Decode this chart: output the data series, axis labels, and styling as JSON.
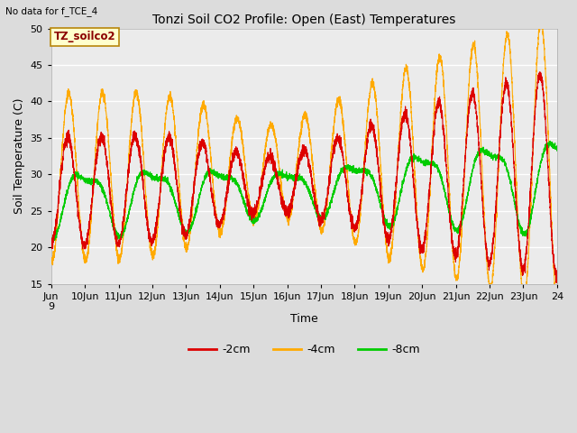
{
  "title": "Tonzi Soil CO2 Profile: Open (East) Temperatures",
  "xlabel": "Time",
  "ylabel": "Soil Temperature (C)",
  "ylim": [
    15,
    50
  ],
  "xlim": [
    0,
    15
  ],
  "no_data_text": "No data for f_TCE_4",
  "box_label": "TZ_soilco2",
  "legend_labels": [
    "-2cm",
    "-4cm",
    "-8cm"
  ],
  "line_colors": [
    "#dd0000",
    "#ffaa00",
    "#00cc00"
  ],
  "bg_color": "#dcdcdc",
  "plot_bg_color": "#ebebeb",
  "grid_color": "#ffffff",
  "yticks": [
    15,
    20,
    25,
    30,
    35,
    40,
    45,
    50
  ],
  "num_points": 5000
}
